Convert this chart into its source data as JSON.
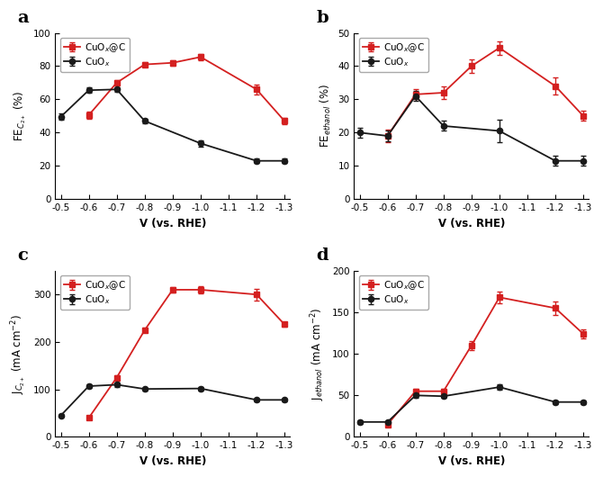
{
  "x_ticks": [
    -0.5,
    -0.6,
    -0.7,
    -0.8,
    -0.9,
    -1.0,
    -1.1,
    -1.2,
    -1.3
  ],
  "panel_a": {
    "label": "a",
    "ylabel": "FE$_{C_{2+}}$ (%)",
    "ylim": [
      0,
      100
    ],
    "yticks": [
      0,
      20,
      40,
      60,
      80,
      100
    ],
    "red_x": [
      -0.6,
      -0.7,
      -0.8,
      -0.9,
      -1.0,
      -1.2,
      -1.3
    ],
    "red_y": [
      50.5,
      70.0,
      81.0,
      82.0,
      85.5,
      66.0,
      47.0
    ],
    "red_err": [
      2.0,
      1.5,
      1.5,
      1.5,
      2.0,
      3.0,
      2.0
    ],
    "black_x": [
      -0.5,
      -0.6,
      -0.7,
      -0.8,
      -1.0,
      -1.2,
      -1.3
    ],
    "black_y": [
      49.5,
      65.5,
      66.0,
      47.0,
      33.5,
      23.0,
      23.0
    ],
    "black_err": [
      2.0,
      1.5,
      1.5,
      1.5,
      2.0,
      1.5,
      1.5
    ]
  },
  "panel_b": {
    "label": "b",
    "ylabel": "FE$_{ethanol}$ (%)",
    "ylim": [
      0,
      50
    ],
    "yticks": [
      0,
      10,
      20,
      30,
      40,
      50
    ],
    "red_x": [
      -0.6,
      -0.7,
      -0.8,
      -0.9,
      -1.0,
      -1.2,
      -1.3
    ],
    "red_y": [
      19.0,
      31.5,
      32.0,
      40.0,
      45.5,
      34.0,
      25.0
    ],
    "red_err": [
      2.0,
      1.5,
      2.0,
      2.0,
      2.0,
      2.5,
      1.5
    ],
    "black_x": [
      -0.5,
      -0.6,
      -0.7,
      -0.8,
      -1.0,
      -1.2,
      -1.3
    ],
    "black_y": [
      20.0,
      19.0,
      31.0,
      22.0,
      20.5,
      11.5,
      11.5
    ],
    "black_err": [
      1.5,
      1.5,
      1.5,
      1.5,
      3.5,
      1.5,
      1.5
    ]
  },
  "panel_c": {
    "label": "c",
    "ylabel": "J$_{C_{2+}}$ (mA cm$^{-2}$)",
    "ylim": [
      0,
      350
    ],
    "yticks": [
      0,
      100,
      200,
      300
    ],
    "red_x": [
      -0.6,
      -0.7,
      -0.8,
      -0.9,
      -1.0,
      -1.2,
      -1.3
    ],
    "red_y": [
      40.0,
      125.0,
      225.0,
      310.0,
      310.0,
      300.0,
      237.0
    ],
    "red_err": [
      3.0,
      4.0,
      5.0,
      5.0,
      8.0,
      12.0,
      5.0
    ],
    "black_x": [
      -0.5,
      -0.6,
      -0.7,
      -0.8,
      -1.0,
      -1.2,
      -1.3
    ],
    "black_y": [
      45.0,
      107.0,
      110.0,
      101.0,
      102.0,
      78.0,
      78.0
    ],
    "black_err": [
      3.0,
      4.0,
      4.0,
      3.0,
      4.0,
      3.0,
      3.0
    ]
  },
  "panel_d": {
    "label": "d",
    "ylabel": "J$_{ethanol}$ (mA cm$^{-2}$)",
    "ylim": [
      0,
      200
    ],
    "yticks": [
      0,
      50,
      100,
      150,
      200
    ],
    "red_x": [
      -0.6,
      -0.7,
      -0.8,
      -0.9,
      -1.0,
      -1.2,
      -1.3
    ],
    "red_y": [
      15.0,
      55.0,
      55.0,
      110.0,
      168.0,
      155.0,
      124.0
    ],
    "red_err": [
      2.0,
      3.0,
      3.0,
      5.0,
      7.0,
      8.0,
      5.0
    ],
    "black_x": [
      -0.5,
      -0.6,
      -0.7,
      -0.8,
      -1.0,
      -1.2,
      -1.3
    ],
    "black_y": [
      18.0,
      18.0,
      50.0,
      49.0,
      60.0,
      42.0,
      42.0
    ],
    "black_err": [
      2.0,
      2.0,
      3.0,
      2.0,
      3.0,
      2.0,
      2.0
    ]
  },
  "red_color": "#d42020",
  "black_color": "#1a1a1a",
  "legend_red": "CuO$_x$@C",
  "legend_black": "CuO$_x$",
  "xlabel": "V (vs. RHE)"
}
